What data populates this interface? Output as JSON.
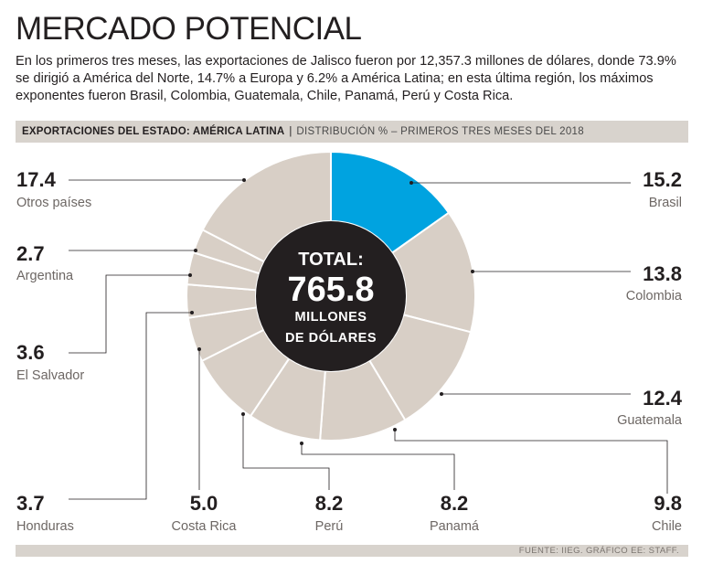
{
  "page": {
    "title": "MERCADO POTENCIAL",
    "intro": "En los primeros tres meses, las exportaciones de Jalisco fueron por 12,357.3 millones de dólares, donde 73.9% se dirigió a América del Norte, 14.7% a Europa y 6.2% a América Latina; en esta última región, los máximos exponentes fueron Brasil, Colombia, Guatemala, Chile, Panamá, Perú y Costa Rica.",
    "header_strong": "EXPORTACIONES DEL ESTADO: AMÉRICA LATINA",
    "header_sep": "|",
    "header_sub": "DISTRIBUCIÓN % – PRIMEROS TRES MESES DEL 2018",
    "footer": "FUENTE: IIEG. GRÁFICO EE: STAFF."
  },
  "chart_data": {
    "type": "pie",
    "style": "donut",
    "title": "EXPORTACIONES DEL ESTADO: AMÉRICA LATINA",
    "subtitle": "DISTRIBUCIÓN % – PRIMEROS TRES MESES DEL 2018",
    "unit": "%",
    "center_label": {
      "line1": "TOTAL:",
      "line2": "765.8",
      "line3": "MILLONES",
      "line4": "DE DÓLARES"
    },
    "slices": [
      {
        "label": "Brasil",
        "value": 15.2,
        "display": "15.2",
        "color": "#00a3e0"
      },
      {
        "label": "Colombia",
        "value": 13.8,
        "display": "13.8",
        "color": "#d8cfc6"
      },
      {
        "label": "Guatemala",
        "value": 12.4,
        "display": "12.4",
        "color": "#d8cfc6"
      },
      {
        "label": "Chile",
        "value": 9.8,
        "display": "9.8",
        "color": "#d8cfc6"
      },
      {
        "label": "Panamá",
        "value": 8.2,
        "display": "8.2",
        "color": "#d8cfc6"
      },
      {
        "label": "Perú",
        "value": 8.2,
        "display": "8.2",
        "color": "#d8cfc6"
      },
      {
        "label": "Costa Rica",
        "value": 5.0,
        "display": "5.0",
        "color": "#d8cfc6"
      },
      {
        "label": "Honduras",
        "value": 3.7,
        "display": "3.7",
        "color": "#d8cfc6"
      },
      {
        "label": "El Salvador",
        "value": 3.6,
        "display": "3.6",
        "color": "#d8cfc6"
      },
      {
        "label": "Argentina",
        "value": 2.7,
        "display": "2.7",
        "color": "#d8cfc6"
      },
      {
        "label": "Otros países",
        "value": 17.4,
        "display": "17.4",
        "color": "#d8cfc6"
      }
    ],
    "colors": {
      "highlight": "#00a3e0",
      "slice": "#d8cfc6",
      "center": "#231f20",
      "leader": "#231f20"
    }
  }
}
